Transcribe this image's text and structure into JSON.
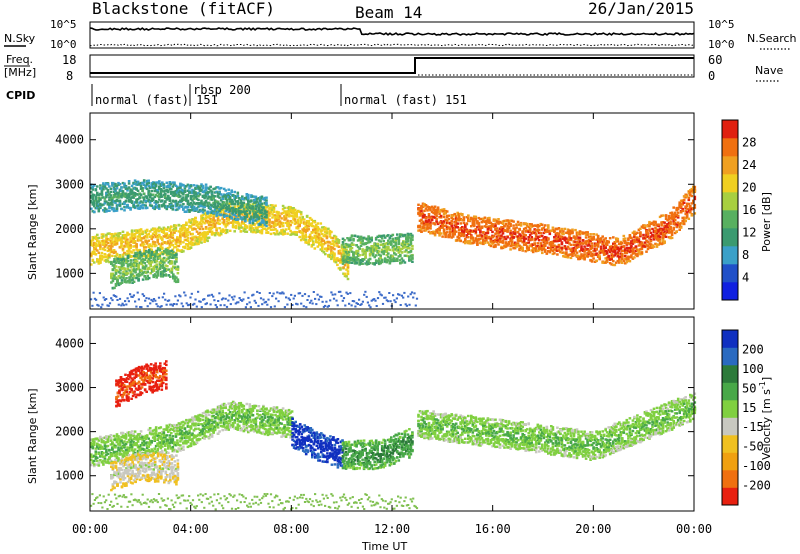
{
  "header": {
    "station": "Blackstone (fitACF)",
    "beam": "Beam 14",
    "date": "26/Jan/2015"
  },
  "panels": {
    "nsky": {
      "label": "N.Sky",
      "tick_top": "10^5",
      "tick_bottom": "10^0"
    },
    "nsearch": {
      "label": "N.Search",
      "tick_top": "10^5",
      "tick_bottom": "10^0"
    },
    "freq": {
      "label_top": "Freq.",
      "label_unit": "[MHz]",
      "tick_top": "18",
      "tick_bottom": "8"
    },
    "nave": {
      "label": "Nave",
      "tick_top": "60",
      "tick_bottom": "0"
    },
    "cpid": {
      "label": "CPID",
      "segments": [
        {
          "text": "normal (fast) 151"
        },
        {
          "text": "rbsp 200"
        },
        {
          "text": "normal (fast) 151"
        }
      ]
    }
  },
  "x_axis": {
    "title": "Time UT",
    "ticks": [
      "00:00",
      "04:00",
      "08:00",
      "12:00",
      "16:00",
      "20:00",
      "00:00"
    ]
  },
  "y_axis": {
    "title": "Slant Range [km]",
    "ticks": [
      "1000",
      "2000",
      "3000",
      "4000"
    ]
  },
  "colorbar_power": {
    "title": "Power [dB]",
    "ticks": [
      "4",
      "8",
      "12",
      "16",
      "20",
      "24",
      "28"
    ],
    "colors": [
      "#1020e0",
      "#2050c8",
      "#3aa0c8",
      "#3a9a70",
      "#58b060",
      "#a8d040",
      "#f0d020",
      "#f0a020",
      "#f07010",
      "#e02010"
    ]
  },
  "colorbar_velocity": {
    "title": "Velocity [m s",
    "title_sup": "-1",
    "title_end": "]",
    "ticks": [
      "200",
      "100",
      "50",
      "15",
      "-15",
      "-50",
      "-100",
      "-200"
    ],
    "colors": [
      "#1030c0",
      "#2a6ac0",
      "#2c7a3a",
      "#48a848",
      "#80d040",
      "#c8c8c0",
      "#f0c020",
      "#f0a010",
      "#f07010",
      "#e82010"
    ]
  },
  "chart_data": {
    "type": "heatmap",
    "x_range": [
      "00:00",
      "24:00"
    ],
    "ylim": [
      200,
      4600
    ],
    "xlabel": "Time UT",
    "ylabel": "Slant Range [km]",
    "panels": [
      {
        "name": "Power",
        "unit": "dB",
        "zlim": [
          0,
          30
        ],
        "bands": [
          {
            "t": [
              0.0,
              3.5,
              5.5,
              8.0,
              9.5,
              10.2
            ],
            "r": [
              1550,
              1800,
              2300,
              2200,
              1700,
              1200
            ],
            "z": 18
          },
          {
            "t": [
              0.8,
              2.0,
              3.0,
              3.5
            ],
            "r": [
              1000,
              1200,
              1300,
              1100
            ],
            "z": 12
          },
          {
            "t": [
              0.0,
              2.0,
              4.5,
              7.0
            ],
            "r": [
              2700,
              2800,
              2700,
              2400
            ],
            "z": 8
          },
          {
            "t": [
              10.0,
              11.5,
              12.8
            ],
            "r": [
              1550,
              1550,
              1600
            ],
            "z": 12
          },
          {
            "t": [
              13.0,
              15.0,
              18.0,
              21.0,
              23.0,
              24.0
            ],
            "r": [
              2300,
              2000,
              1800,
              1500,
              2100,
              2700
            ],
            "z": 24
          }
        ]
      },
      {
        "name": "Velocity",
        "unit": "m s^-1",
        "zlim": [
          -200,
          200
        ],
        "bands": [
          {
            "t": [
              0.0,
              3.5,
              5.5,
              8.0
            ],
            "r": [
              1550,
              1900,
              2400,
              2200
            ],
            "z": 0
          },
          {
            "t": [
              0.8,
              2.0,
              3.5
            ],
            "r": [
              1000,
              1250,
              1150
            ],
            "z": -60
          },
          {
            "t": [
              1.0,
              2.0,
              3.0
            ],
            "r": [
              2900,
              3200,
              3300
            ],
            "z": -200
          },
          {
            "t": [
              8.0,
              9.0,
              10.0
            ],
            "r": [
              2000,
              1700,
              1500
            ],
            "z": 150
          },
          {
            "t": [
              10.0,
              11.5,
              12.8
            ],
            "r": [
              1500,
              1500,
              1800
            ],
            "z": 40
          },
          {
            "t": [
              13.0,
              16.0,
              20.0,
              24.0
            ],
            "r": [
              2200,
              2000,
              1700,
              2600
            ],
            "z": 0
          }
        ]
      }
    ]
  }
}
